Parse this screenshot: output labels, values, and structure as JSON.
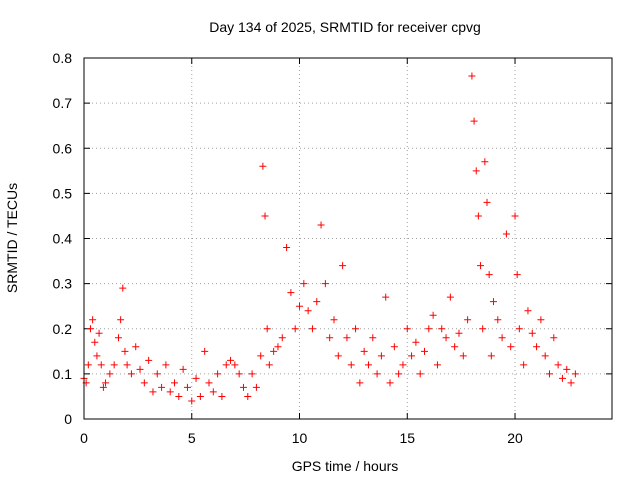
{
  "chart_data": {
    "type": "scatter",
    "title": "Day 134 of 2025, SRMTID for receiver cpvg",
    "xlabel": "GPS time / hours",
    "ylabel": "SRMTID / TECUs",
    "xlim": [
      0,
      24.5
    ],
    "ylim": [
      0,
      0.8
    ],
    "xticks": [
      0,
      5,
      10,
      15,
      20
    ],
    "xtick_labels": [
      "0",
      "5",
      "10",
      "15",
      "20"
    ],
    "yticks": [
      0,
      0.1,
      0.2,
      0.3,
      0.4,
      0.5,
      0.6,
      0.7,
      0.8
    ],
    "ytick_labels": [
      "0",
      "0.1",
      "0.2",
      "0.3",
      "0.4",
      "0.5",
      "0.6",
      "0.7",
      "0.8"
    ],
    "grid": true,
    "marker": "+",
    "color": "#ff0000",
    "series": [
      {
        "name": "SRMTID",
        "x": [
          0.0,
          0.1,
          0.2,
          0.3,
          0.4,
          0.5,
          0.6,
          0.7,
          0.8,
          0.9,
          1.0,
          1.2,
          1.4,
          1.6,
          1.7,
          1.8,
          1.9,
          2.0,
          2.2,
          2.4,
          2.6,
          2.8,
          3.0,
          3.2,
          3.4,
          3.6,
          3.8,
          4.0,
          4.2,
          4.4,
          4.6,
          4.8,
          5.0,
          5.2,
          5.4,
          5.6,
          5.8,
          6.0,
          6.2,
          6.4,
          6.6,
          6.8,
          7.0,
          7.2,
          7.4,
          7.6,
          7.8,
          8.0,
          8.2,
          8.3,
          8.4,
          8.5,
          8.6,
          8.8,
          9.0,
          9.2,
          9.4,
          9.6,
          9.8,
          10.0,
          10.2,
          10.4,
          10.6,
          10.8,
          11.0,
          11.2,
          11.4,
          11.6,
          11.8,
          12.0,
          12.2,
          12.4,
          12.6,
          12.8,
          13.0,
          13.2,
          13.4,
          13.6,
          13.8,
          14.0,
          14.2,
          14.4,
          14.6,
          14.8,
          15.0,
          15.2,
          15.4,
          15.6,
          15.8,
          16.0,
          16.2,
          16.4,
          16.6,
          16.8,
          17.0,
          17.2,
          17.4,
          17.6,
          17.8,
          18.0,
          18.1,
          18.2,
          18.3,
          18.4,
          18.5,
          18.6,
          18.7,
          18.8,
          18.9,
          19.0,
          19.2,
          19.4,
          19.6,
          19.8,
          20.0,
          20.1,
          20.2,
          20.4,
          20.6,
          20.8,
          21.0,
          21.2,
          21.4,
          21.6,
          21.8,
          22.0,
          22.2,
          22.4,
          22.6,
          22.8
        ],
        "y": [
          0.09,
          0.08,
          0.12,
          0.2,
          0.22,
          0.17,
          0.14,
          0.19,
          0.12,
          0.07,
          0.08,
          0.1,
          0.12,
          0.18,
          0.22,
          0.29,
          0.15,
          0.12,
          0.1,
          0.16,
          0.11,
          0.08,
          0.13,
          0.06,
          0.1,
          0.07,
          0.12,
          0.06,
          0.08,
          0.05,
          0.11,
          0.07,
          0.04,
          0.09,
          0.05,
          0.15,
          0.08,
          0.06,
          0.1,
          0.05,
          0.12,
          0.13,
          0.12,
          0.1,
          0.07,
          0.05,
          0.1,
          0.07,
          0.14,
          0.56,
          0.45,
          0.2,
          0.12,
          0.15,
          0.16,
          0.18,
          0.38,
          0.28,
          0.2,
          0.25,
          0.3,
          0.24,
          0.2,
          0.26,
          0.43,
          0.3,
          0.18,
          0.22,
          0.14,
          0.34,
          0.18,
          0.12,
          0.2,
          0.08,
          0.15,
          0.12,
          0.18,
          0.1,
          0.14,
          0.27,
          0.08,
          0.16,
          0.1,
          0.12,
          0.2,
          0.14,
          0.17,
          0.1,
          0.15,
          0.2,
          0.23,
          0.12,
          0.2,
          0.18,
          0.27,
          0.16,
          0.19,
          0.14,
          0.22,
          0.76,
          0.66,
          0.55,
          0.45,
          0.34,
          0.2,
          0.57,
          0.48,
          0.32,
          0.14,
          0.26,
          0.22,
          0.18,
          0.41,
          0.16,
          0.45,
          0.32,
          0.2,
          0.12,
          0.24,
          0.19,
          0.16,
          0.22,
          0.14,
          0.1,
          0.18,
          0.12,
          0.09,
          0.11,
          0.08,
          0.1
        ]
      }
    ]
  }
}
